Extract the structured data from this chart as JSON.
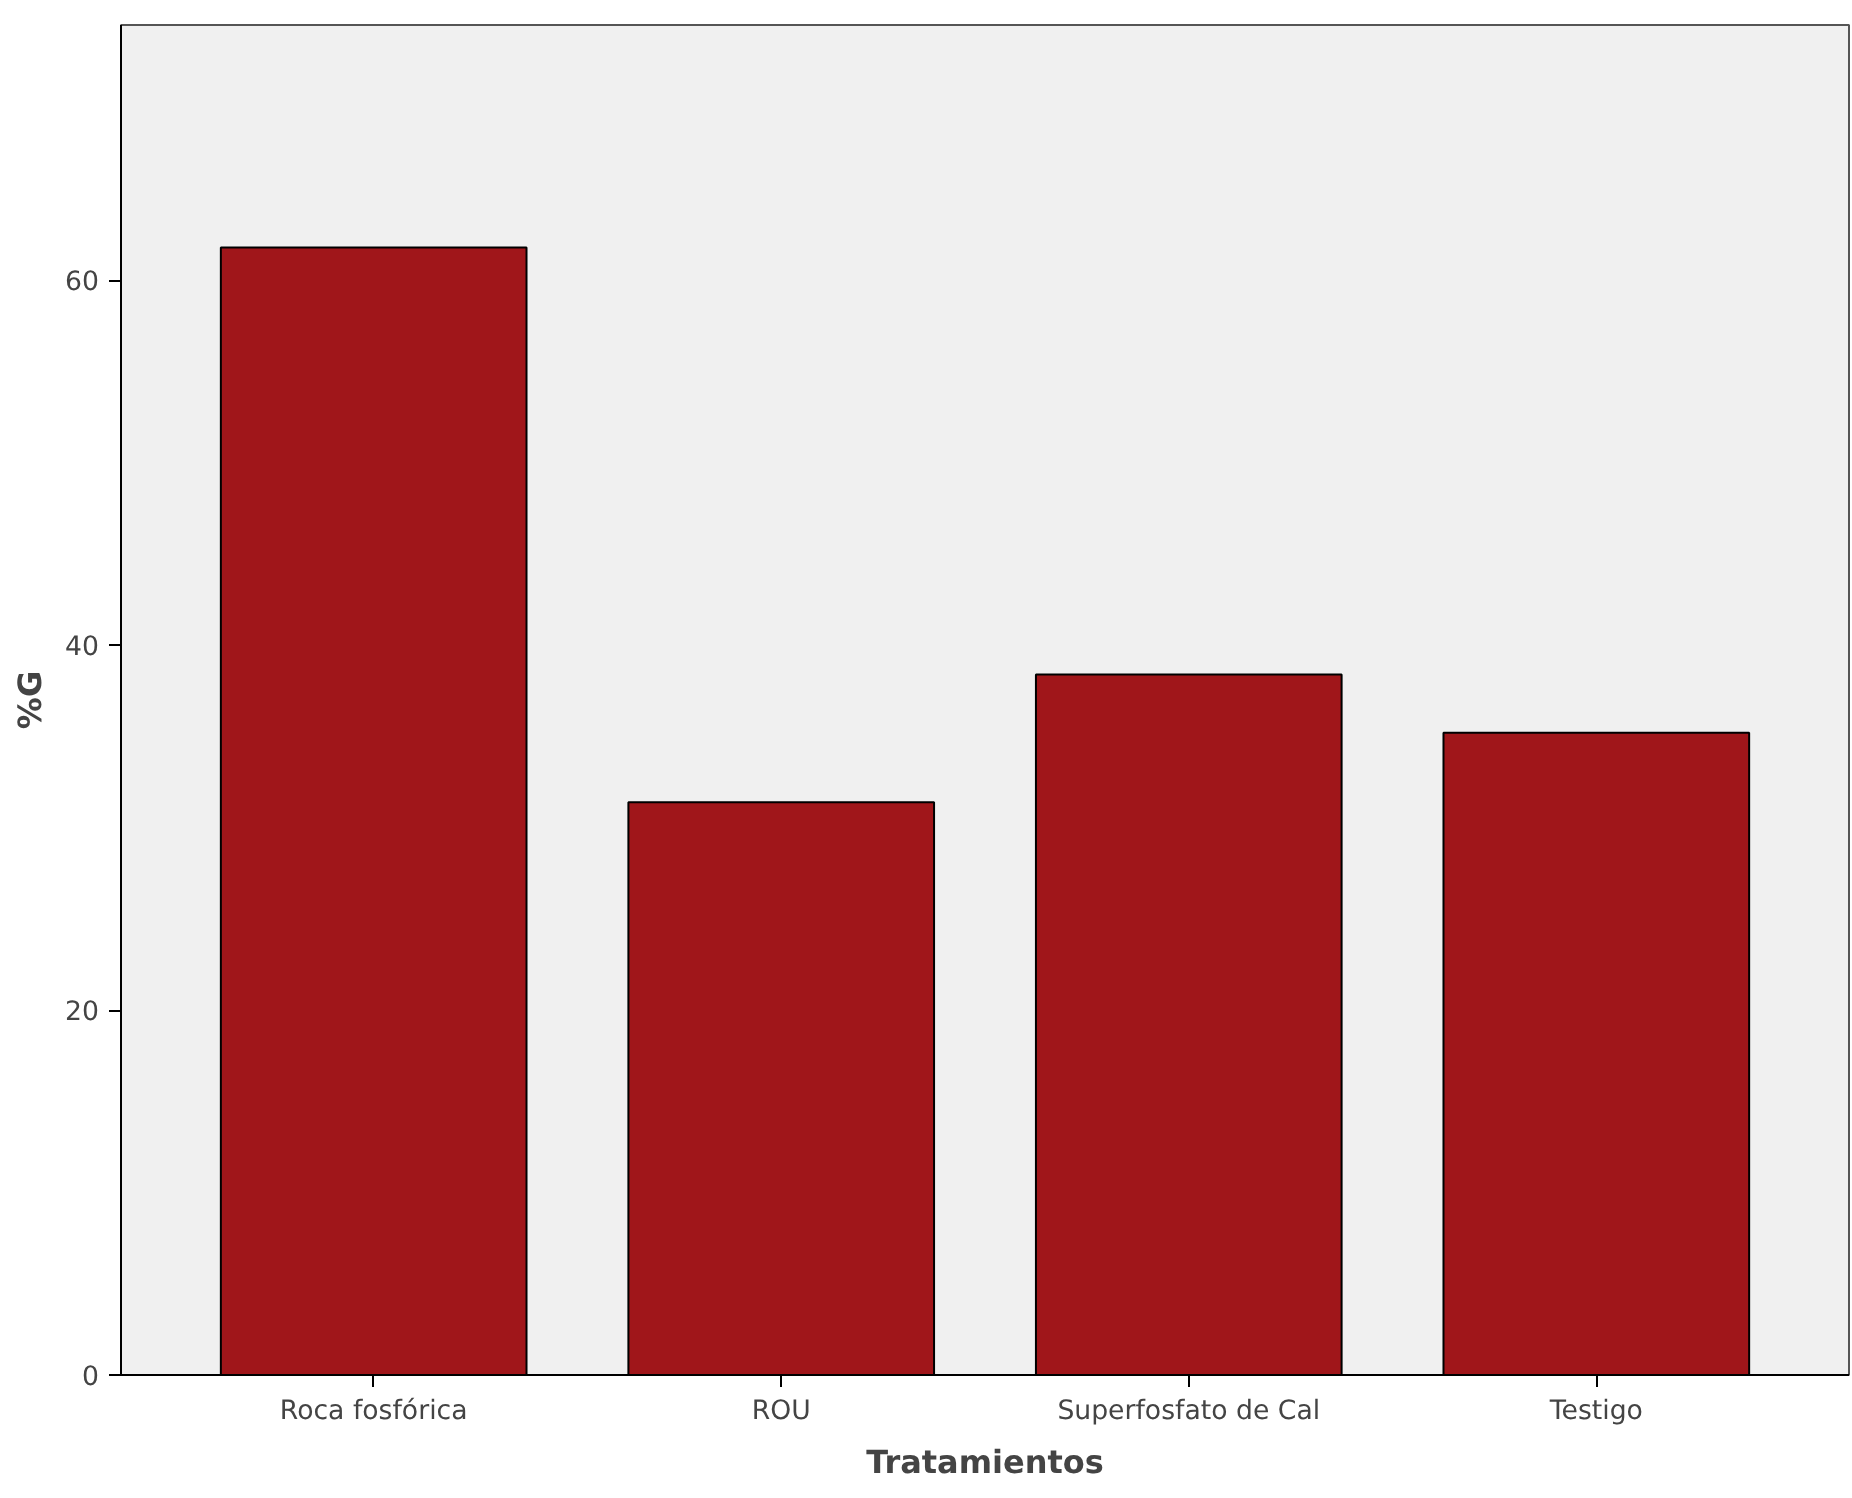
{
  "chart_data": {
    "type": "bar",
    "xlabel": "Tratamientos",
    "ylabel": "%G",
    "categories": [
      "Roca fosfórica",
      "ROU",
      "Superfosfato de Cal",
      "Testigo"
    ],
    "values": [
      61.8,
      31.4,
      38.4,
      35.2
    ],
    "color": "#a0161a",
    "ylim": [
      0,
      74
    ],
    "yticks": [
      0,
      20,
      40,
      60
    ],
    "grid": false
  }
}
